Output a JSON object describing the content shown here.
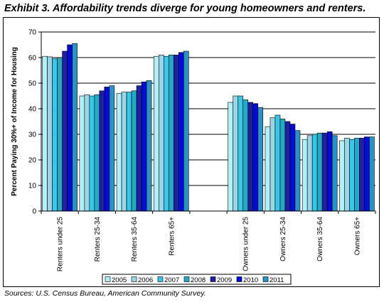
{
  "title": "Exhibit 3. Affordability trends diverge for young homeowners and renters.",
  "source": "Sources: U.S. Census Bureau, American Community Survey.",
  "chart_data": {
    "type": "bar",
    "title": "Exhibit 3. Affordability trends diverge for young homeowners and renters.",
    "ylabel": "Percent Paying 30%+ of Income for Housing",
    "xlabel": "",
    "ylim": [
      0,
      70
    ],
    "yticks": [
      0,
      10,
      20,
      30,
      40,
      50,
      60,
      70
    ],
    "grid": true,
    "legend": "bottom",
    "categories": [
      "Renters under 25",
      "Renters 25-34",
      "Renters 35-64",
      "Renters 65+",
      "",
      "Owners under 25",
      "Owners 25-34",
      "Owners 35-64",
      "Owners 65+"
    ],
    "series": [
      {
        "name": "2005",
        "color": "#b2f0f7",
        "values": [
          60.5,
          45.0,
          46.0,
          60.5,
          null,
          42.5,
          33.0,
          28.0,
          27.5
        ]
      },
      {
        "name": "2006",
        "color": "#9ad5e8",
        "values": [
          60.3,
          45.5,
          46.5,
          61.0,
          null,
          45.0,
          36.5,
          29.5,
          28.5
        ]
      },
      {
        "name": "2007",
        "color": "#36c8e6",
        "values": [
          59.5,
          45.0,
          46.5,
          60.5,
          null,
          45.0,
          37.5,
          30.0,
          28.0
        ]
      },
      {
        "name": "2008",
        "color": "#24a9c8",
        "values": [
          60.0,
          45.5,
          47.0,
          61.0,
          null,
          43.5,
          36.0,
          30.5,
          28.5
        ]
      },
      {
        "name": "2009",
        "color": "#1f1fa2",
        "values": [
          62.5,
          47.0,
          49.0,
          61.0,
          null,
          42.5,
          35.0,
          30.5,
          28.5
        ]
      },
      {
        "name": "2010",
        "color": "#000cd8",
        "values": [
          65.0,
          48.5,
          50.5,
          62.0,
          null,
          42.0,
          34.0,
          31.0,
          29.0
        ]
      },
      {
        "name": "2011",
        "color": "#2a92c6",
        "values": [
          65.5,
          49.0,
          51.0,
          62.5,
          null,
          40.5,
          31.5,
          29.5,
          29.0
        ]
      }
    ]
  }
}
